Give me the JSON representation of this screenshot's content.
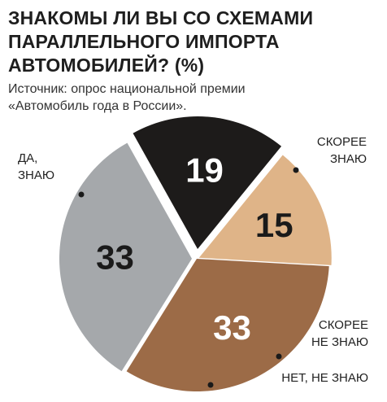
{
  "header": {
    "title_lines": [
      "ЗНАКОМЫ ЛИ ВЫ СО СХЕМАМИ",
      "ПАРАЛЛЕЛЬНОГО ИМПОРТА",
      "АВТОМОБИЛЕЙ? (%)"
    ],
    "source_lines": [
      "Источник: опрос национальной премии",
      "«Автомобиль года в России»."
    ]
  },
  "chart_data": {
    "type": "pie",
    "title": "ЗНАКОМЫ ЛИ ВЫ СО СХЕМАМИ ПАРАЛЛЕЛЬНОГО ИМПОРТА АВТОМОБИЛЕЙ? (%)",
    "unit": "%",
    "slices": [
      {
        "label_lines": [
          "СКОРЕЕ",
          "ЗНАЮ"
        ],
        "value": 33,
        "value_label": "33",
        "color": "#a5a8ab",
        "text_color": "#1a1a1a"
      },
      {
        "label_lines": [
          "СКОРЕЕ",
          "НЕ ЗНАЮ"
        ],
        "value": 19,
        "value_label": "19",
        "color": "#1d1b1a",
        "text_color": "#ffffff"
      },
      {
        "label_lines": [
          "НЕТ, НЕ ЗНАЮ"
        ],
        "value": 15,
        "value_label": "15",
        "color": "#dfb488",
        "text_color": "#1a1a1a"
      },
      {
        "label_lines": [
          "ДА,",
          "ЗНАЮ"
        ],
        "value": 33,
        "value_label": "33",
        "color": "#9c6b47",
        "text_color": "#ffffff"
      }
    ],
    "legend": "external-labels"
  }
}
